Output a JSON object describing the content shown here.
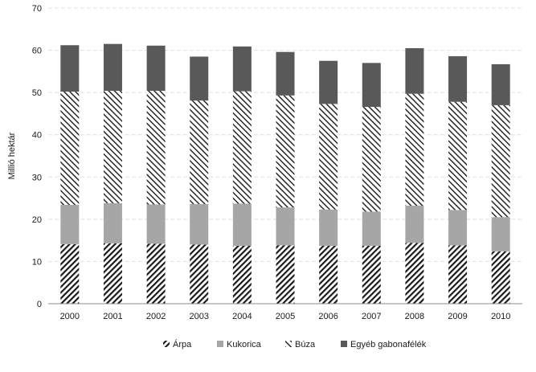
{
  "chart_data": {
    "type": "bar",
    "stacked": true,
    "categories": [
      "2000",
      "2001",
      "2002",
      "2003",
      "2004",
      "2005",
      "2006",
      "2007",
      "2008",
      "2009",
      "2010"
    ],
    "series": [
      {
        "name": "Árpa",
        "values": [
          14.1,
          14.3,
          14.2,
          14.0,
          13.7,
          13.8,
          13.7,
          13.7,
          14.4,
          13.8,
          12.4
        ],
        "pattern": "hatch-forward",
        "color": "#222222"
      },
      {
        "name": "Kukorica",
        "values": [
          9.3,
          9.5,
          9.3,
          9.6,
          10.0,
          9.0,
          8.6,
          8.1,
          8.8,
          8.4,
          8.1
        ],
        "pattern": "solid",
        "color": "#a6a6a6"
      },
      {
        "name": "Búza",
        "values": [
          26.8,
          26.6,
          26.9,
          24.5,
          26.6,
          26.5,
          25.0,
          24.8,
          26.5,
          25.6,
          26.5
        ],
        "pattern": "hatch-back",
        "color": "#222222"
      },
      {
        "name": "Egyéb gabonafélék",
        "values": [
          11.0,
          11.1,
          10.7,
          10.4,
          10.6,
          10.3,
          10.2,
          10.4,
          10.8,
          10.8,
          9.7
        ],
        "pattern": "solid",
        "color": "#595959"
      }
    ],
    "ylabel": "Millió hektár",
    "xlabel": "",
    "ylim": [
      0,
      70
    ],
    "yticks": [
      0,
      10,
      20,
      30,
      40,
      50,
      60,
      70
    ],
    "grid": true,
    "legend_position": "bottom"
  }
}
